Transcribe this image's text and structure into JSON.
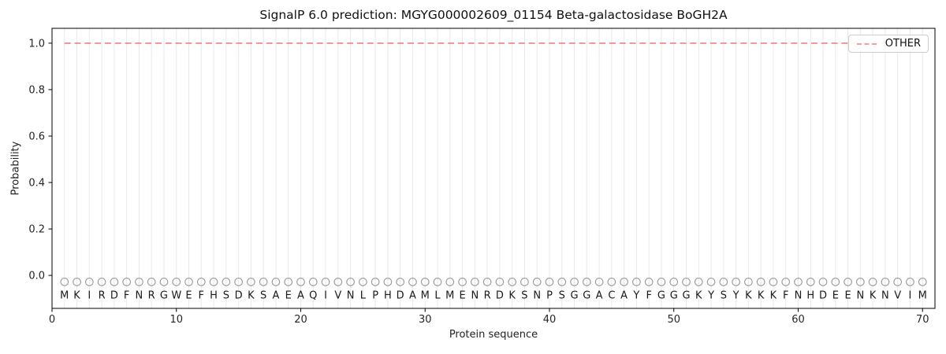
{
  "chart_data": {
    "type": "line",
    "title": "SignalP 6.0 prediction: MGYG000002609_01154 Beta-galactosidase BoGH2A",
    "xlabel": "Protein sequence",
    "ylabel": "Probability",
    "xlim": [
      0,
      71
    ],
    "ylim": [
      -0.142,
      1.064
    ],
    "xticks": [
      0,
      10,
      20,
      30,
      40,
      50,
      60,
      70
    ],
    "yticks": [
      0.0,
      0.2,
      0.4,
      0.6,
      0.8,
      1.0
    ],
    "grid": "vertical gridline at every residue position",
    "legend": {
      "position": "upper right",
      "entries": [
        {
          "label": "OTHER",
          "color": "#f08080",
          "linestyle": "dashed"
        }
      ]
    },
    "series": [
      {
        "name": "OTHER",
        "linestyle": "dashed",
        "color": "#f08080",
        "x_range": [
          1,
          70
        ],
        "y_constant": 1.0,
        "note": "constant probability 1.0 across all 70 residues"
      }
    ],
    "sequence": {
      "residues": "MKIRDFNRGWEFHSDKSAEAQIVNLPHDAMLMENRDKSNPSGGACAYFGGGKYSYKKKFNHDEENKNVIM",
      "length": 70,
      "marker": "open-circle",
      "marker_color": "#9a9a9a",
      "marker_y": -0.028,
      "letter_y": -0.085,
      "letter_color": "#1a1a1a"
    },
    "colors": {
      "grid": "#e9e9e9",
      "spine": "#000000",
      "tick_label": "#262626",
      "background": "#ffffff"
    }
  }
}
